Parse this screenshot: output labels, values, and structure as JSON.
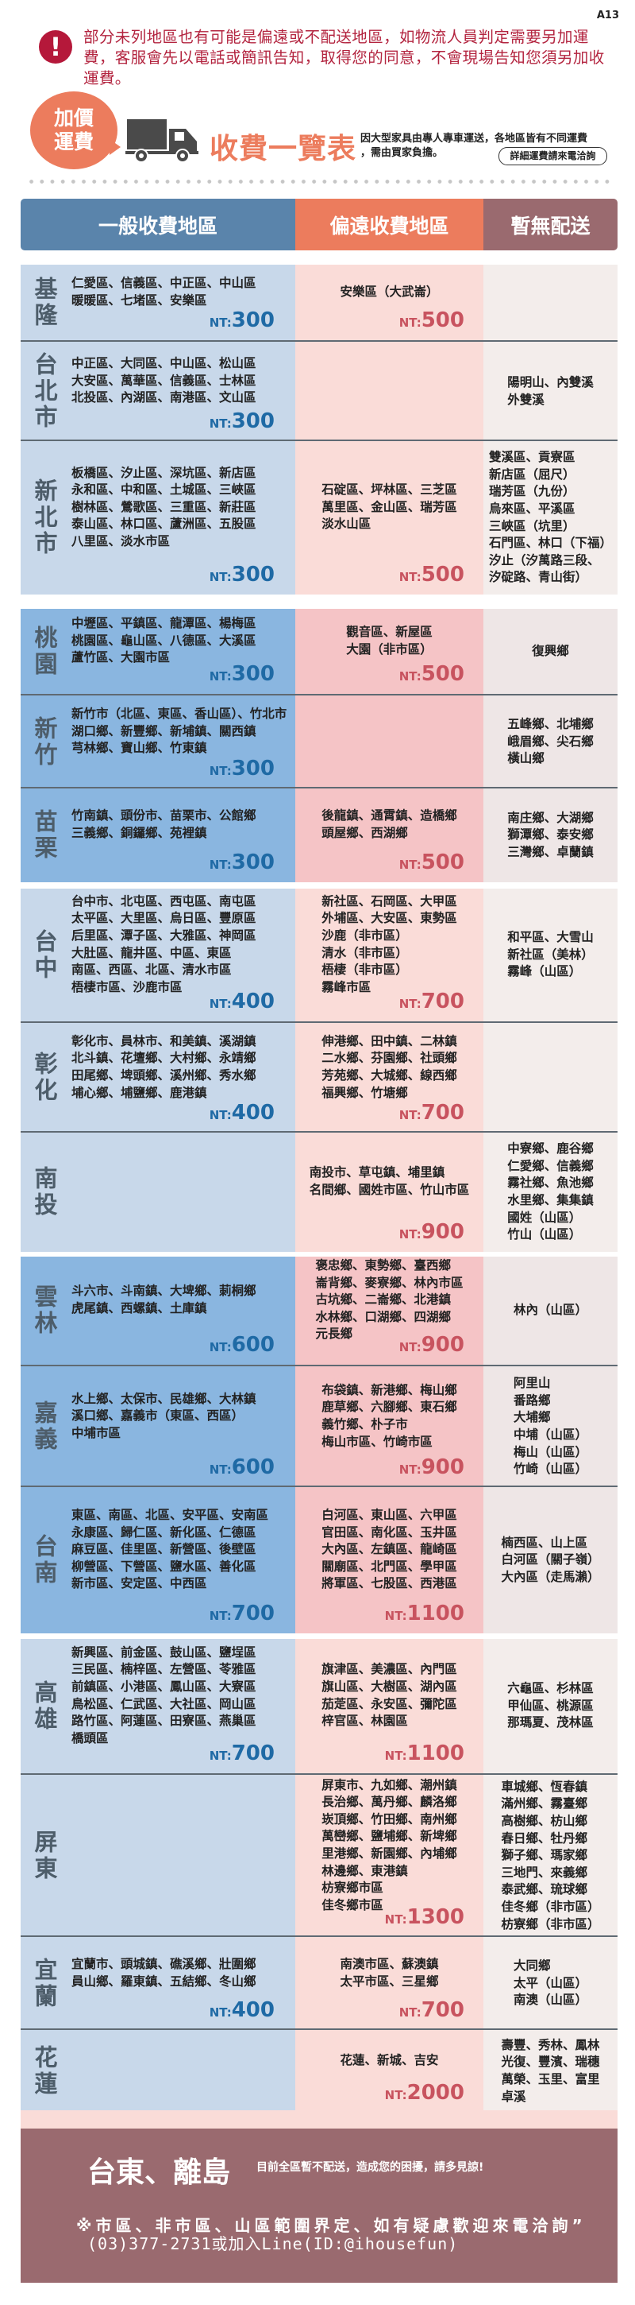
{
  "page_code": "A13",
  "notice": {
    "icon": "exclamation-icon",
    "text": "部分未列地區也有可能是偏遠或不配送地區，如物流人員判定需要另加運費，客服會先以電話或簡訊告知，取得您的同意，不會現場告知您須另加收運費。"
  },
  "banner": {
    "badge_line1": "加價",
    "badge_line2": "運費",
    "truck_icon": "truck-icon",
    "title": "收費一覽表",
    "subtitle_line1": "因大型家具由專人專車運送，各地區皆有不同運費",
    "subtitle_line2": "，需由買家負擔。",
    "inquire_button": "詳細運費請來電洽詢"
  },
  "table_header": {
    "general": "一般收費地區",
    "remote": "偏遠收費地區",
    "no_delivery": "暫無配送"
  },
  "colors": {
    "general_header": "#5a84ab",
    "remote_header": "#ec7c5d",
    "no_delivery_header": "#9a6a6f",
    "general_price": "#1f6aa5",
    "remote_price": "#c8535f",
    "notice_text": "#b3243f"
  },
  "price_prefix": "NT:",
  "groups": [
    {
      "rows": [
        {
          "region": "基隆",
          "general": {
            "lines": [
              "仁愛區、信義區、中正區、中山區",
              "暖暖區、七堵區、安樂區"
            ],
            "price": "300"
          },
          "remote": {
            "lines": [
              "安樂區（大武崙）"
            ],
            "price": "500"
          },
          "none": {
            "lines": []
          }
        },
        {
          "region": "台北市",
          "general": {
            "lines": [
              "中正區、大同區、中山區、松山區",
              "大安區、萬華區、信義區、士林區",
              "北投區、內湖區、南港區、文山區"
            ],
            "price": "300"
          },
          "remote": {
            "lines": []
          },
          "none": {
            "lines": [
              "陽明山、內雙溪",
              "外雙溪"
            ]
          }
        },
        {
          "region": "新北市",
          "general": {
            "lines": [
              "板橋區、汐止區、深坑區、新店區",
              "永和區、中和區、土城區、三峽區",
              "樹林區、鶯歌區、三重區、新莊區",
              "泰山區、林口區、蘆洲區、五股區",
              "八里區、淡水市區"
            ],
            "price": "300"
          },
          "remote": {
            "lines": [
              "石碇區、坪林區、三芝區",
              "萬里區、金山區、瑞芳區",
              "淡水山區"
            ],
            "price": "500"
          },
          "none": {
            "lines": [
              "雙溪區、貢寮區",
              "新店區（屈尺）",
              "瑞芳區（九份）",
              "烏來區、平溪區",
              "三峽區（坑里）",
              "石門區、林口（下福）",
              "汐止（汐萬路三段、",
              "汐碇路、青山街）"
            ]
          }
        }
      ]
    },
    {
      "rows": [
        {
          "region": "桃園",
          "general": {
            "lines": [
              "中壢區、平鎮區、龍潭區、楊梅區",
              "桃園區、龜山區、八德區、大溪區",
              "蘆竹區、大園市區"
            ],
            "price": "300"
          },
          "remote": {
            "lines": [
              "觀音區、新屋區",
              "大園（非市區）"
            ],
            "price": "500"
          },
          "none": {
            "lines": [
              "復興鄉"
            ]
          }
        },
        {
          "region": "新竹",
          "general": {
            "lines": [
              "新竹市（北區、東區、香山區）、竹北市",
              "湖口鄉、新豐鄉、新埔鎮、關西鎮",
              "芎林鄉、寶山鄉、竹東鎮"
            ],
            "price": "300"
          },
          "remote": {
            "lines": []
          },
          "none": {
            "lines": [
              "五峰鄉、北埔鄉",
              "峨眉鄉、尖石鄉",
              "橫山鄉"
            ]
          }
        },
        {
          "region": "苗栗",
          "general": {
            "lines": [
              "竹南鎮、頭份市、苗栗市、公館鄉",
              "三義鄉、銅鑼鄉、苑裡鎮"
            ],
            "price": "300"
          },
          "remote": {
            "lines": [
              "後龍鎮、通霄鎮、造橋鄉",
              "頭屋鄉、西湖鄉"
            ],
            "price": "500"
          },
          "none": {
            "lines": [
              "南庄鄉、大湖鄉",
              "獅潭鄉、泰安鄉",
              "三灣鄉、卓蘭鎮"
            ]
          }
        }
      ]
    },
    {
      "rows": [
        {
          "region": "台中",
          "general": {
            "lines": [
              "台中市、北屯區、西屯區、南屯區",
              "太平區、大里區、烏日區、豐原區",
              "后里區、潭子區、大雅區、神岡區",
              "大肚區、龍井區、中區、東區",
              "南區、西區、北區、清水市區",
              "梧棲市區、沙鹿市區"
            ],
            "price": "400"
          },
          "remote": {
            "lines": [
              "新社區、石岡區、大甲區",
              "外埔區、大安區、東勢區",
              "沙鹿（非市區）",
              "清水（非市區）",
              "梧棲（非市區）",
              "霧峰市區"
            ],
            "price": "700"
          },
          "none": {
            "lines": [
              "和平區、大雪山",
              "新社區（美林）",
              "霧峰（山區）"
            ]
          }
        },
        {
          "region": "彰化",
          "general": {
            "lines": [
              "彰化市、員林市、和美鎮、溪湖鎮",
              "北斗鎮、花壇鄉、大村鄉、永靖鄉",
              "田尾鄉、埤頭鄉、溪州鄉、秀水鄉",
              "埔心鄉、埔鹽鄉、鹿港鎮"
            ],
            "price": "400"
          },
          "remote": {
            "lines": [
              "伸港鄉、田中鎮、二林鎮",
              "二水鄉、芬園鄉、社頭鄉",
              "芳苑鄉、大城鄉、線西鄉",
              "福興鄉、竹塘鄉"
            ],
            "price": "700"
          },
          "none": {
            "lines": []
          }
        },
        {
          "region": "南投",
          "general": {
            "lines": []
          },
          "remote": {
            "lines": [
              "南投市、草屯鎮、埔里鎮",
              "名間鄉、國姓市區、竹山市區"
            ],
            "price": "900"
          },
          "none": {
            "lines": [
              "中寮鄉、鹿谷鄉",
              "仁愛鄉、信義鄉",
              "霧社鄉、魚池鄉",
              "水里鄉、集集鎮",
              "國姓（山區）",
              "竹山（山區）"
            ]
          }
        }
      ]
    },
    {
      "rows": [
        {
          "region": "雲林",
          "general": {
            "lines": [
              "斗六市、斗南鎮、大埤鄉、莿桐鄉",
              "虎尾鎮、西螺鎮、土庫鎮"
            ],
            "price": "600"
          },
          "remote": {
            "lines": [
              "褒忠鄉、東勢鄉、臺西鄉",
              "崙背鄉、麥寮鄉、林內市區",
              "古坑鄉、二崙鄉、北港鎮",
              "水林鄉、口湖鄉、四湖鄉",
              "元長鄉"
            ],
            "price": "900"
          },
          "none": {
            "lines": [
              "林內（山區）"
            ]
          }
        },
        {
          "region": "嘉義",
          "general": {
            "lines": [
              "水上鄉、太保市、民雄鄉、大林鎮",
              "溪口鄉、嘉義市（東區、西區）",
              "中埔市區"
            ],
            "price": "600"
          },
          "remote": {
            "lines": [
              "布袋鎮、新港鄉、梅山鄉",
              "鹿草鄉、六腳鄉、東石鄉",
              "義竹鄉、朴子市",
              "梅山市區、竹崎市區"
            ],
            "price": "900"
          },
          "none": {
            "lines": [
              "阿里山",
              "番路鄉",
              "大埔鄉",
              "中埔（山區）",
              "梅山（山區）",
              "竹崎（山區）"
            ]
          }
        },
        {
          "region": "台南",
          "general": {
            "lines": [
              "東區、南區、北區、安平區、安南區",
              "永康區、歸仁區、新化區、仁德區",
              "麻豆區、佳里區、新營區、後壁區",
              "柳營區、下營區、鹽水區、善化區",
              "新市區、安定區、中西區"
            ],
            "price": "700"
          },
          "remote": {
            "lines": [
              "白河區、東山區、六甲區",
              "官田區、南化區、玉井區",
              "大內區、左鎮區、龍崎區",
              "關廟區、北門區、學甲區",
              "將軍區、七股區、西港區"
            ],
            "price": "1100"
          },
          "none": {
            "lines": [
              "楠西區、山上區",
              "白河區（關子嶺）",
              "大內區（走馬瀨）"
            ]
          }
        }
      ]
    },
    {
      "rows": [
        {
          "region": "高雄",
          "general": {
            "lines": [
              "新興區、前金區、鼓山區、鹽埕區",
              "三民區、楠梓區、左營區、苓雅區",
              "前鎮區、小港區、鳳山區、大寮區",
              "鳥松區、仁武區、大社區、岡山區",
              "路竹區、阿蓮區、田寮區、燕巢區",
              "橋頭區"
            ],
            "price": "700"
          },
          "remote": {
            "lines": [
              "旗津區、美濃區、內門區",
              "旗山區、大樹區、湖內區",
              "茄萣區、永安區、彌陀區",
              "梓官區、林園區"
            ],
            "price": "1100"
          },
          "none": {
            "lines": [
              "六龜區、杉林區",
              "甲仙區、桃源區",
              "那瑪夏、茂林區"
            ]
          }
        },
        {
          "region": "屏東",
          "general": {
            "lines": []
          },
          "remote": {
            "lines": [
              "屏東市、九如鄉、潮州鎮",
              "長治鄉、萬丹鄉、麟洛鄉",
              "崁頂鄉、竹田鄉、南州鄉",
              "萬巒鄉、鹽埔鄉、新埤鄉",
              "里港鄉、新園鄉、內埔鄉",
              "林邊鄉、東港鎮",
              "枋寮鄉市區",
              "佳冬鄉市區"
            ],
            "price": "1300"
          },
          "none": {
            "lines": [
              "車城鄉、恆春鎮",
              "滿州鄉、霧臺鄉",
              "高樹鄉、枋山鄉",
              "春日鄉、牡丹鄉",
              "獅子鄉、瑪家鄉",
              "三地門、來義鄉",
              "泰武鄉、琉球鄉",
              "佳冬鄉（非市區）",
              "枋寮鄉（非市區）"
            ]
          }
        },
        {
          "region": "宜蘭",
          "general": {
            "lines": [
              "宜蘭市、頭城鎮、礁溪鄉、壯圍鄉",
              "員山鄉、羅東鎮、五結鄉、冬山鄉"
            ],
            "price": "400"
          },
          "remote": {
            "lines": [
              "南澳市區、蘇澳鎮",
              "太平市區、三星鄉"
            ],
            "price": "700"
          },
          "none": {
            "lines": [
              "大同鄉",
              "太平（山區）",
              "南澳（山區）"
            ]
          }
        },
        {
          "region": "花蓮",
          "general": {
            "lines": []
          },
          "remote": {
            "lines": [
              "花蓮、新城、吉安"
            ],
            "price": "2000"
          },
          "none": {
            "lines": [
              "壽豐、秀林、鳳林",
              "光復、豐濱、瑞穗",
              "萬榮、玉里、富里",
              "卓溪"
            ]
          }
        }
      ]
    }
  ],
  "footer": {
    "title": "台東、離島",
    "subtitle": "目前全區暫不配送，造成您的困擾，請多見諒!",
    "note": "※市區、非市區、山區範圍界定、如有疑慮歡迎來電洽詢”",
    "contact": "(03)377-2731或加入Line(ID:@ihousefun)"
  }
}
